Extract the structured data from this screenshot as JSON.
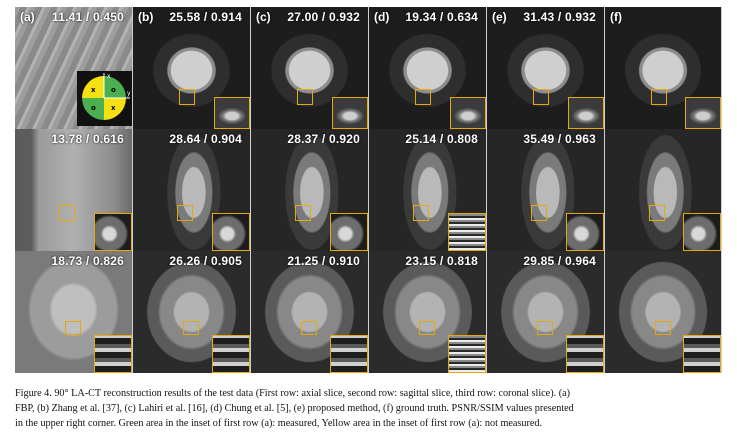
{
  "panel_labels": [
    "(a)",
    "(b)",
    "(c)",
    "(d)",
    "(e)",
    "(f)"
  ],
  "rows": [
    {
      "row": "axial",
      "metrics": [
        "11.41 / 0.450",
        "25.58 / 0.914",
        "27.00 / 0.932",
        "19.34 / 0.634",
        "31.43 / 0.932",
        ""
      ]
    },
    {
      "row": "sagittal",
      "metrics": [
        "13.78 / 0.616",
        "28.64 / 0.904",
        "28.37 / 0.920",
        "25.14 / 0.808",
        "35.49 / 0.963",
        ""
      ]
    },
    {
      "row": "coronal",
      "metrics": [
        "18.73 / 0.826",
        "26.26 / 0.905",
        "21.25 / 0.910",
        "23.15 / 0.818",
        "29.85 / 0.964",
        ""
      ]
    }
  ],
  "fbp_inset": {
    "axis_x": "x",
    "axis_y": "y",
    "marks": [
      "x",
      "o",
      "o",
      "x"
    ],
    "measured_color": "#4caf50",
    "not_measured_color": "#f5e011"
  },
  "roi_color": "#e6a90c",
  "caption": {
    "line1": "Figure 4. 90° LA-CT reconstruction results of the test data (First row: axial slice, second row: sagittal slice, third row: coronal slice). (a)",
    "line2": "FBP, (b) Zhang et al. [37], (c) Lahiri et al. [16], (d) Chung et al. [5], (e) proposed method, (f) ground truth. PSNR/SSIM values presented",
    "line3": "in the upper right corner. Green area in the inset of first row (a): measured, Yellow area in the inset of first row (a): not measured."
  }
}
